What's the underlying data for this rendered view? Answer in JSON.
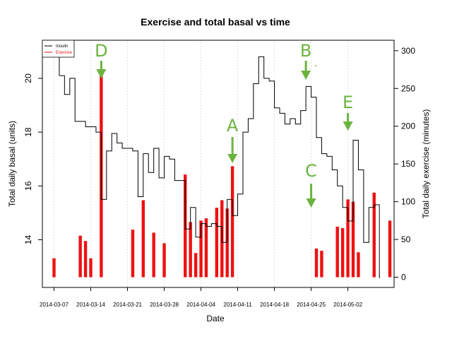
{
  "chart_data": {
    "type": "bar+step",
    "title": "Exercise and total basal vs time",
    "xlabel": "Date",
    "ylabel_left": "Total daily basal (units)",
    "ylabel_right": "Total daily exercise (minutes)",
    "x_ticks": [
      "2014-03-07",
      "2014-03-14",
      "2014-03-21",
      "2014-03-28",
      "2014-04-04",
      "2014-04-11",
      "2014-04-18",
      "2014-04-25",
      "2014-05-02"
    ],
    "y_left_ticks": [
      14,
      16,
      18,
      20
    ],
    "y_right_ticks": [
      0,
      50,
      100,
      150,
      200,
      250,
      300
    ],
    "y_left_range": [
      12.5,
      21.5
    ],
    "y_right_range": [
      -10,
      310
    ],
    "grid": "vertical-dotted",
    "legend": {
      "position": "top-left",
      "entries": [
        {
          "label": "Insulin",
          "color": "#000000"
        },
        {
          "label": "Exercise",
          "color": "#ee1111"
        }
      ]
    },
    "series": [
      {
        "name": "Insulin",
        "type": "step",
        "color": "#000000",
        "points": [
          [
            "2014-03-07",
            21.0
          ],
          [
            "2014-03-08",
            20.1
          ],
          [
            "2014-03-09",
            19.4
          ],
          [
            "2014-03-10",
            20.0
          ],
          [
            "2014-03-11",
            18.4
          ],
          [
            "2014-03-12",
            18.4
          ],
          [
            "2014-03-13",
            18.2
          ],
          [
            "2014-03-14",
            18.2
          ],
          [
            "2014-03-15",
            18.0
          ],
          [
            "2014-03-16",
            15.5
          ],
          [
            "2014-03-17",
            17.3
          ],
          [
            "2014-03-18",
            17.95
          ],
          [
            "2014-03-19",
            17.6
          ],
          [
            "2014-03-20",
            17.4
          ],
          [
            "2014-03-21",
            17.4
          ],
          [
            "2014-03-22",
            17.3
          ],
          [
            "2014-03-23",
            15.6
          ],
          [
            "2014-03-24",
            17.2
          ],
          [
            "2014-03-25",
            16.5
          ],
          [
            "2014-03-26",
            17.4
          ],
          [
            "2014-03-27",
            16.3
          ],
          [
            "2014-03-28",
            17.1
          ],
          [
            "2014-03-29",
            17.0
          ],
          [
            "2014-03-30",
            16.2
          ],
          [
            "2014-03-31",
            16.2
          ],
          [
            "2014-04-01",
            14.4
          ],
          [
            "2014-04-02",
            15.2
          ],
          [
            "2014-04-03",
            14.1
          ],
          [
            "2014-04-04",
            14.6
          ],
          [
            "2014-04-05",
            14.5
          ],
          [
            "2014-04-06",
            14.6
          ],
          [
            "2014-04-07",
            14.5
          ],
          [
            "2014-04-08",
            13.9
          ],
          [
            "2014-04-09",
            15.5
          ],
          [
            "2014-04-10",
            14.9
          ],
          [
            "2014-04-11",
            15.7
          ],
          [
            "2014-04-12",
            18.0
          ],
          [
            "2014-04-13",
            18.5
          ],
          [
            "2014-04-14",
            19.8
          ],
          [
            "2014-04-15",
            20.8
          ],
          [
            "2014-04-16",
            20.0
          ],
          [
            "2014-04-17",
            19.9
          ],
          [
            "2014-04-18",
            18.9
          ],
          [
            "2014-04-19",
            18.7
          ],
          [
            "2014-04-20",
            18.3
          ],
          [
            "2014-04-21",
            18.5
          ],
          [
            "2014-04-22",
            18.3
          ],
          [
            "2014-04-23",
            18.8
          ],
          [
            "2014-04-24",
            19.7
          ],
          [
            "2014-04-25",
            19.3
          ],
          [
            "2014-04-26",
            17.8
          ],
          [
            "2014-04-27",
            17.2
          ],
          [
            "2014-04-28",
            17.1
          ],
          [
            "2014-04-29",
            16.6
          ],
          [
            "2014-04-30",
            16.0
          ],
          [
            "2014-05-01",
            15.2
          ],
          [
            "2014-05-02",
            14.7
          ],
          [
            "2014-05-03",
            17.7
          ],
          [
            "2014-05-04",
            16.6
          ],
          [
            "2014-05-05",
            13.9
          ],
          [
            "2014-05-06",
            15.2
          ],
          [
            "2014-05-07",
            15.3
          ],
          [
            "2014-05-08",
            12.6
          ]
        ]
      },
      {
        "name": "Exercise",
        "type": "bar",
        "color": "#ee1111",
        "points": [
          [
            "2014-03-07",
            25
          ],
          [
            "2014-03-12",
            55
          ],
          [
            "2014-03-13",
            48
          ],
          [
            "2014-03-14",
            25
          ],
          [
            "2014-03-16",
            270
          ],
          [
            "2014-03-22",
            63
          ],
          [
            "2014-03-24",
            102
          ],
          [
            "2014-03-26",
            59
          ],
          [
            "2014-03-28",
            45
          ],
          [
            "2014-04-01",
            136
          ],
          [
            "2014-04-02",
            73
          ],
          [
            "2014-04-03",
            32
          ],
          [
            "2014-04-04",
            75
          ],
          [
            "2014-04-05",
            78
          ],
          [
            "2014-04-07",
            92
          ],
          [
            "2014-04-08",
            102
          ],
          [
            "2014-04-09",
            91
          ],
          [
            "2014-04-10",
            147
          ],
          [
            "2014-04-26",
            38
          ],
          [
            "2014-04-27",
            35
          ],
          [
            "2014-04-30",
            67
          ],
          [
            "2014-05-01",
            65
          ],
          [
            "2014-05-02",
            103
          ],
          [
            "2014-05-03",
            100
          ],
          [
            "2014-05-04",
            33
          ],
          [
            "2014-05-07",
            112
          ],
          [
            "2014-05-10",
            75
          ]
        ]
      }
    ],
    "annotations": [
      {
        "label": "D",
        "date": "2014-03-16"
      },
      {
        "label": "A",
        "date": "2014-04-10"
      },
      {
        "label": "B",
        "date": "2014-04-24"
      },
      {
        "label": "C",
        "date": "2014-04-25"
      },
      {
        "label": "E",
        "date": "2014-05-02"
      }
    ],
    "annotation_color": "#6cb33e"
  }
}
